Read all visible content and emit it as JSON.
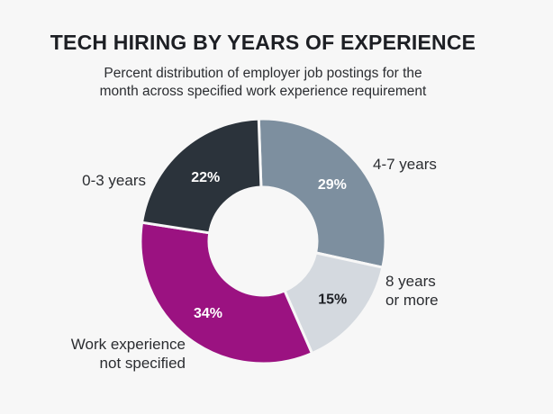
{
  "chart_data": {
    "type": "pie",
    "title": "TECH HIRING BY YEARS OF EXPERIENCE",
    "subtitle_lines": [
      "Percent distribution of employer job postings for the",
      "month across specified work experience requirement"
    ],
    "categories": [
      "4-7 years",
      "8 years or more",
      "Work experience not specified",
      "0-3 years"
    ],
    "category_label_lines": [
      [
        "4-7 years"
      ],
      [
        "8 years",
        "or more"
      ],
      [
        "Work experience",
        "not specified"
      ],
      [
        "0-3 years"
      ]
    ],
    "values": [
      29,
      15,
      34,
      22
    ],
    "value_labels": [
      "29%",
      "15%",
      "34%",
      "22%"
    ],
    "colors": [
      "#7d8f9f",
      "#d4d9df",
      "#9b1281",
      "#2b333b"
    ],
    "donut": true,
    "legend": "none"
  }
}
